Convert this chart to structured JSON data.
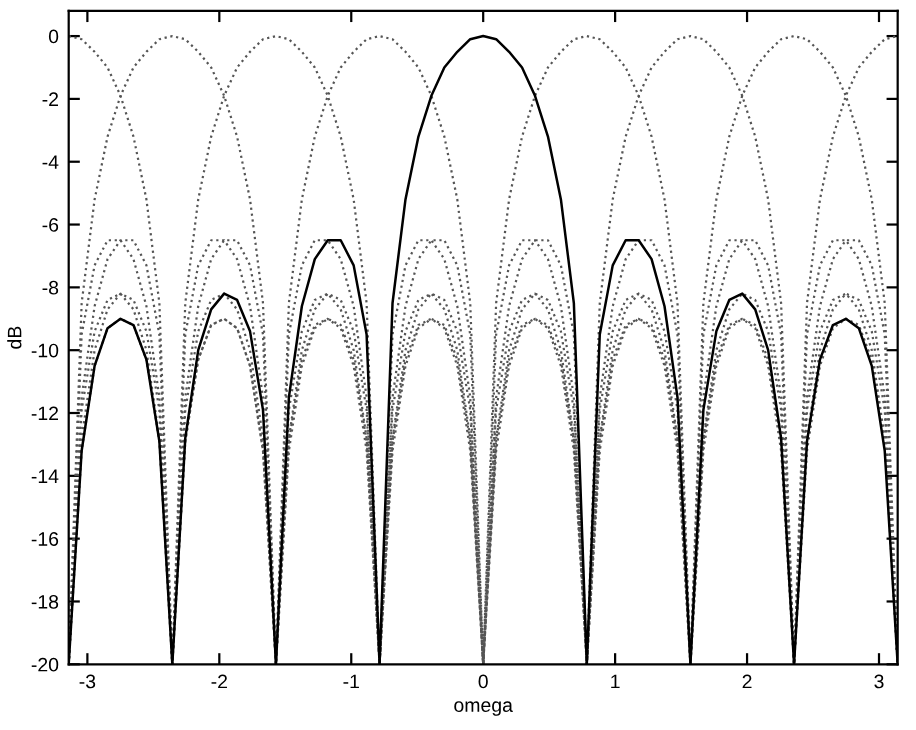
{
  "chart_data": {
    "type": "line",
    "xlabel": "omega",
    "ylabel": "dB",
    "x": [
      -3.1416,
      -3.0434,
      -2.9452,
      -2.8471,
      -2.7489,
      -2.6507,
      -2.5525,
      -2.4544,
      -2.3562,
      -2.258,
      -2.1598,
      -2.0617,
      -1.9635,
      -1.8653,
      -1.7671,
      -1.669,
      -1.5708,
      -1.4726,
      -1.3744,
      -1.2763,
      -1.1781,
      -1.0799,
      -0.9817,
      -0.8836,
      -0.7854,
      -0.6872,
      -0.589,
      -0.4909,
      -0.3927,
      -0.2945,
      -0.1963,
      -0.0982,
      0,
      0.0982,
      0.1963,
      0.2945,
      0.3927,
      0.4909,
      0.589,
      0.6872,
      0.7854,
      0.8836,
      0.9817,
      1.0799,
      1.1781,
      1.2763,
      1.3744,
      1.4726,
      1.5708,
      1.669,
      1.7671,
      1.8653,
      1.9635,
      2.0617,
      2.1598,
      2.258,
      2.3562,
      2.4544,
      2.5525,
      2.6507,
      2.7489,
      2.8471,
      2.9452,
      3.0434,
      3.1416
    ],
    "xlim": [
      -3.1416,
      3.1416
    ],
    "xticks": [
      -3,
      -2,
      -1,
      0,
      1,
      2,
      3
    ],
    "ylim": [
      -20,
      0.8
    ],
    "yticks": [
      -20,
      -18,
      -16,
      -14,
      -12,
      -10,
      -8,
      -6,
      -4,
      -2,
      0
    ],
    "grid": false,
    "marker": "none",
    "series": [
      {
        "color": "#555555",
        "line_style": "dotted",
        "values": [
          -20,
          -13.2,
          -10.5,
          -9.3,
          -9,
          -9.2,
          -10.3,
          -12.9,
          -20,
          -12.9,
          -10.3,
          -9.2,
          -9,
          -9.3,
          -10.5,
          -13.2,
          -20,
          -12.8,
          -10,
          -8.7,
          -8.2,
          -8.4,
          -9.4,
          -11.9,
          -20,
          -11.5,
          -8.6,
          -7.1,
          -6.5,
          -6.5,
          -7.3,
          -9.5,
          -20,
          -8.5,
          -5.2,
          -3.2,
          -1.9,
          -1,
          -0.5,
          -0.1,
          0,
          -0.1,
          -0.5,
          -1,
          -1.9,
          -3.2,
          -5.2,
          -8.5,
          -20,
          -9.5,
          -7.3,
          -6.5,
          -6.5,
          -7.1,
          -8.6,
          -11.5,
          -20,
          -11.9,
          -9.4,
          -8.4,
          -8.2,
          -8.7,
          -10,
          -12.8,
          -20
        ]
      },
      {
        "color": "#555555",
        "line_style": "dotted",
        "values": [
          -20,
          -11.9,
          -9.4,
          -8.4,
          -8.2,
          -8.7,
          -10,
          -12.8,
          -20,
          -12.9,
          -10.3,
          -9.2,
          -9,
          -9.3,
          -10.5,
          -13.2,
          -20,
          -13.2,
          -10.5,
          -9.3,
          -9,
          -9.2,
          -10.3,
          -12.9,
          -20,
          -12.8,
          -10,
          -8.7,
          -8.2,
          -8.4,
          -9.4,
          -11.9,
          -20,
          -11.5,
          -8.6,
          -7.1,
          -6.5,
          -6.5,
          -7.3,
          -9.5,
          -20,
          -8.5,
          -5.2,
          -3.2,
          -1.9,
          -1,
          -0.5,
          -0.1,
          0,
          -0.1,
          -0.5,
          -1,
          -1.9,
          -3.2,
          -5.2,
          -8.5,
          -20,
          -9.5,
          -7.3,
          -6.5,
          -6.5,
          -7.1,
          -8.6,
          -11.5,
          -20
        ]
      },
      {
        "color": "#555555",
        "line_style": "dotted",
        "values": [
          -20,
          -9.5,
          -7.3,
          -6.5,
          -6.5,
          -7.1,
          -8.6,
          -11.5,
          -20,
          -11.9,
          -9.4,
          -8.4,
          -8.2,
          -8.7,
          -10,
          -12.8,
          -20,
          -12.9,
          -10.3,
          -9.2,
          -9,
          -9.3,
          -10.5,
          -13.2,
          -20,
          -13.2,
          -10.5,
          -9.3,
          -9,
          -9.2,
          -10.3,
          -12.9,
          -20,
          -12.8,
          -10,
          -8.7,
          -8.2,
          -8.4,
          -9.4,
          -11.9,
          -20,
          -11.5,
          -8.6,
          -7.1,
          -6.5,
          -6.5,
          -7.3,
          -9.5,
          -20,
          -8.5,
          -5.2,
          -3.2,
          -1.9,
          -1,
          -0.5,
          -0.1,
          0,
          -0.1,
          -0.5,
          -1,
          -1.9,
          -3.2,
          -5.2,
          -8.5,
          -20
        ]
      },
      {
        "color": "#555555",
        "line_style": "dotted",
        "values": [
          0,
          -0.1,
          -0.5,
          -1,
          -1.9,
          -3.2,
          -5.2,
          -8.5,
          -20,
          -9.5,
          -7.3,
          -6.5,
          -6.5,
          -7.1,
          -8.6,
          -11.5,
          -20,
          -11.9,
          -9.4,
          -8.4,
          -8.2,
          -8.7,
          -10,
          -12.8,
          -20,
          -12.9,
          -10.3,
          -9.2,
          -9,
          -9.3,
          -10.5,
          -13.2,
          -20,
          -13.2,
          -10.5,
          -9.3,
          -9,
          -9.2,
          -10.3,
          -12.9,
          -20,
          -12.8,
          -10,
          -8.7,
          -8.2,
          -8.4,
          -9.4,
          -11.9,
          -20,
          -11.5,
          -8.6,
          -7.1,
          -6.5,
          -6.5,
          -7.3,
          -9.5,
          -20,
          -8.5,
          -5.2,
          -3.2,
          -1.9,
          -1,
          -0.5,
          -0.1,
          0
        ]
      },
      {
        "color": "#555555",
        "line_style": "dotted",
        "values": [
          -20,
          -12.8,
          -10,
          -8.7,
          -8.2,
          -8.4,
          -9.4,
          -11.9,
          -20,
          -11.5,
          -8.6,
          -7.1,
          -6.5,
          -6.5,
          -7.3,
          -9.5,
          -20,
          -8.5,
          -5.2,
          -3.2,
          -1.9,
          -1,
          -0.5,
          -0.1,
          0,
          -0.1,
          -0.5,
          -1,
          -1.9,
          -3.2,
          -5.2,
          -8.5,
          -20,
          -9.5,
          -7.3,
          -6.5,
          -6.5,
          -7.1,
          -8.6,
          -11.5,
          -20,
          -11.9,
          -9.4,
          -8.4,
          -8.2,
          -8.7,
          -10,
          -12.8,
          -20,
          -12.9,
          -10.3,
          -9.2,
          -9,
          -9.3,
          -10.5,
          -13.2,
          -20,
          -13.2,
          -10.5,
          -9.3,
          -9,
          -9.2,
          -10.3,
          -12.9,
          -20
        ]
      },
      {
        "color": "#555555",
        "line_style": "dotted",
        "values": [
          -20,
          -11.5,
          -8.6,
          -7.1,
          -6.5,
          -6.5,
          -7.3,
          -9.5,
          -20,
          -8.5,
          -5.2,
          -3.2,
          -1.9,
          -1,
          -0.5,
          -0.1,
          0,
          -0.1,
          -0.5,
          -1,
          -1.9,
          -3.2,
          -5.2,
          -8.5,
          -20,
          -9.5,
          -7.3,
          -6.5,
          -6.5,
          -7.1,
          -8.6,
          -11.5,
          -20,
          -11.9,
          -9.4,
          -8.4,
          -8.2,
          -8.7,
          -10,
          -12.8,
          -20,
          -12.9,
          -10.3,
          -9.2,
          -9,
          -9.3,
          -10.5,
          -13.2,
          -20,
          -13.2,
          -10.5,
          -9.3,
          -9,
          -9.2,
          -10.3,
          -12.9,
          -20,
          -12.8,
          -10,
          -8.7,
          -8.2,
          -8.4,
          -9.4,
          -11.9,
          -20
        ]
      },
      {
        "color": "#555555",
        "line_style": "dotted",
        "values": [
          -20,
          -8.5,
          -5.2,
          -3.2,
          -1.9,
          -1,
          -0.5,
          -0.1,
          0,
          -0.1,
          -0.5,
          -1,
          -1.9,
          -3.2,
          -5.2,
          -8.5,
          -20,
          -9.5,
          -7.3,
          -6.5,
          -6.5,
          -7.1,
          -8.6,
          -11.5,
          -20,
          -11.9,
          -9.4,
          -8.4,
          -8.2,
          -8.7,
          -10,
          -12.8,
          -20,
          -12.9,
          -10.3,
          -9.2,
          -9,
          -9.3,
          -10.5,
          -13.2,
          -20,
          -13.2,
          -10.5,
          -9.3,
          -9,
          -9.2,
          -10.3,
          -12.9,
          -20,
          -12.8,
          -10,
          -8.7,
          -8.2,
          -8.4,
          -9.4,
          -11.9,
          -20,
          -11.5,
          -8.6,
          -7.1,
          -6.5,
          -6.5,
          -7.3,
          -9.5,
          -20
        ]
      },
      {
        "color": "#000000",
        "line_style": "solid",
        "values": [
          -20,
          -13.2,
          -10.5,
          -9.3,
          -9,
          -9.2,
          -10.3,
          -12.9,
          -20,
          -12.8,
          -10,
          -8.7,
          -8.2,
          -8.4,
          -9.4,
          -11.9,
          -20,
          -11.5,
          -8.6,
          -7.1,
          -6.5,
          -6.5,
          -7.3,
          -9.5,
          -20,
          -8.5,
          -5.2,
          -3.2,
          -1.9,
          -1,
          -0.5,
          -0.1,
          0,
          -0.1,
          -0.5,
          -1,
          -1.9,
          -3.2,
          -5.2,
          -8.5,
          -20,
          -9.5,
          -7.3,
          -6.5,
          -6.5,
          -7.1,
          -8.6,
          -11.5,
          -20,
          -11.9,
          -9.4,
          -8.4,
          -8.2,
          -8.7,
          -10,
          -12.8,
          -20,
          -12.9,
          -10.3,
          -9.2,
          -9,
          -9.3,
          -10.5,
          -13.2,
          -20
        ]
      }
    ]
  }
}
